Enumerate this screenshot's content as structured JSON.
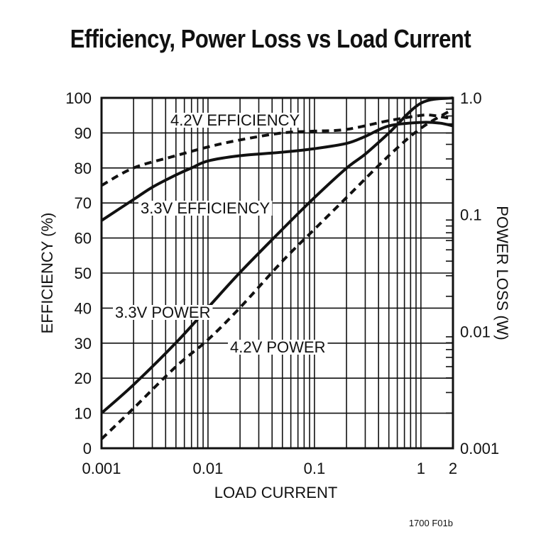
{
  "title": "Efficiency, Power Loss vs Load Current",
  "figure_code": "1700 F01b",
  "chart_data": {
    "type": "line",
    "title": "Efficiency, Power Loss vs Load Current",
    "xlabel": "LOAD CURRENT",
    "ylabel": "EFFICIENCY (%)",
    "y2label": "POWER LOSS (W)",
    "xscale": "log",
    "xlim": [
      0.001,
      2
    ],
    "ylim": [
      0,
      100
    ],
    "y2scale": "log",
    "y2lim": [
      0.001,
      1.0
    ],
    "grid": true,
    "x_ticks": [
      "0.001",
      "0.01",
      "0.1",
      "1",
      "2"
    ],
    "y_ticks": [
      "0",
      "10",
      "20",
      "30",
      "40",
      "50",
      "60",
      "70",
      "80",
      "90",
      "100"
    ],
    "y2_ticks": [
      "0.001",
      "0.01",
      "0.1",
      "1.0"
    ],
    "series": [
      {
        "name": "4.2V EFFICIENCY",
        "axis": "left",
        "style": "dashed",
        "x": [
          0.001,
          0.002,
          0.005,
          0.01,
          0.02,
          0.05,
          0.1,
          0.2,
          0.5,
          1,
          1.3,
          2
        ],
        "y": [
          75,
          80,
          83.5,
          86,
          88,
          90,
          90.5,
          91,
          93.5,
          95,
          95,
          94
        ]
      },
      {
        "name": "3.3V EFFICIENCY",
        "axis": "left",
        "style": "solid",
        "x": [
          0.001,
          0.002,
          0.003,
          0.005,
          0.007,
          0.01,
          0.02,
          0.05,
          0.1,
          0.2,
          0.3,
          0.5,
          1,
          1.5,
          2
        ],
        "y": [
          65,
          71,
          74.5,
          78,
          80,
          82,
          83.5,
          84.5,
          85.5,
          87,
          89,
          92,
          93,
          92.8,
          92
        ]
      },
      {
        "name": "3.3V POWER",
        "axis": "right",
        "style": "solid",
        "x": [
          0.001,
          0.002,
          0.005,
          0.01,
          0.02,
          0.05,
          0.1,
          0.2,
          0.3,
          0.5,
          1,
          2
        ],
        "y": [
          0.002,
          0.0035,
          0.008,
          0.016,
          0.032,
          0.075,
          0.14,
          0.25,
          0.33,
          0.5,
          0.9,
          1.0
        ]
      },
      {
        "name": "4.2V POWER",
        "axis": "right",
        "style": "dashed",
        "x": [
          0.001,
          0.002,
          0.005,
          0.01,
          0.02,
          0.05,
          0.1,
          0.2,
          0.5,
          1,
          2
        ],
        "y": [
          0.0012,
          0.0022,
          0.005,
          0.0085,
          0.016,
          0.04,
          0.075,
          0.14,
          0.32,
          0.55,
          0.8
        ]
      }
    ],
    "annotations": [
      "4.2V EFFICIENCY",
      "3.3V EFFICIENCY",
      "3.3V POWER",
      "4.2V POWER"
    ]
  }
}
